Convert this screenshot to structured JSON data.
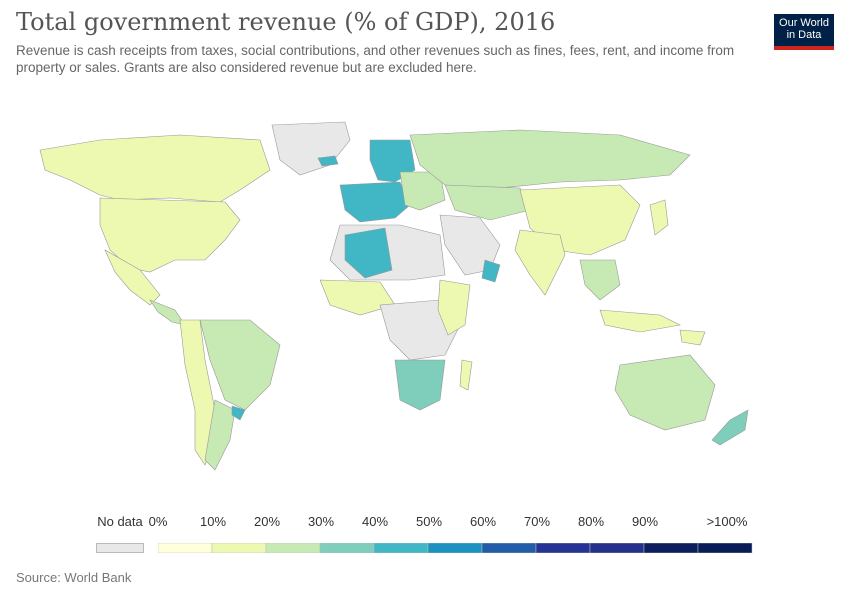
{
  "header": {
    "title": "Total government revenue (% of GDP), 2016",
    "subtitle": "Revenue is cash receipts from taxes, social contributions, and other revenues such as fines, fees, rent, and income from property or sales. Grants are also considered revenue but are excluded here.",
    "logo": {
      "line1": "Our World",
      "line2": "in Data"
    }
  },
  "legend": {
    "no_data_label": "No data",
    "no_data_color": "#e8e8e8",
    "labels": [
      "0%",
      "10%",
      "20%",
      "30%",
      "40%",
      "50%",
      "60%",
      "70%",
      "80%",
      "90%",
      ">100%"
    ],
    "colors": [
      "#ffffd9",
      "#edf8b1",
      "#c7e9b4",
      "#7fcdbb",
      "#41b6c4",
      "#1d91c0",
      "#225ea8",
      "#253494",
      "#23308c",
      "#0c1e5c",
      "#081d58"
    ]
  },
  "source": "Source: World Bank"
}
